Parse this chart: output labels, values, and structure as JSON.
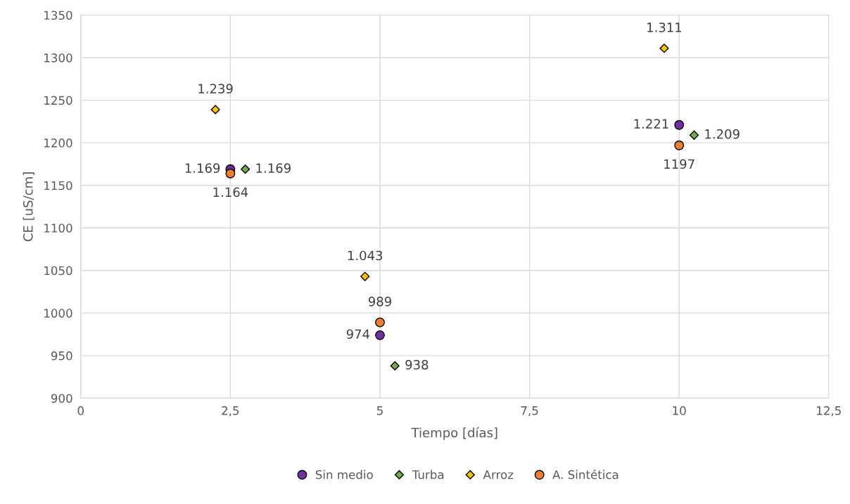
{
  "chart_data": {
    "type": "scatter",
    "xlabel": "Tiempo [días]",
    "ylabel": "CE [uS/cm]",
    "xlim": [
      0,
      12.5
    ],
    "xticks": [
      0,
      {
        "value": 2.5,
        "label": "2,5"
      },
      5,
      {
        "value": 7.5,
        "label": "7,5"
      },
      10,
      {
        "value": 12.5,
        "label": "12,5"
      }
    ],
    "ylim": [
      900,
      1350
    ],
    "yticks": [
      900,
      950,
      1000,
      1050,
      1100,
      1150,
      1200,
      1250,
      1300,
      1350
    ],
    "grid": true,
    "legend": "bottom",
    "series": [
      {
        "name": "Sin medio",
        "color": "#7030a0",
        "marker": "circle",
        "x": [
          2.5,
          5,
          10
        ],
        "values": [
          1169,
          974,
          1221
        ],
        "value_labels": [
          "1.169",
          "974",
          "1.221"
        ]
      },
      {
        "name": "Turba",
        "color": "#70ad47",
        "marker": "diamond",
        "x": [
          2.75,
          5.25,
          10.25
        ],
        "values": [
          1169,
          938,
          1209
        ],
        "value_labels": [
          "1.169",
          "938",
          "1.209"
        ]
      },
      {
        "name": "Arroz",
        "color": "#ffc000",
        "marker": "diamond",
        "x": [
          2.25,
          4.75,
          9.75
        ],
        "values": [
          1239,
          1043,
          1311
        ],
        "value_labels": [
          "1.239",
          "1.043",
          "1.311"
        ]
      },
      {
        "name": "A. Sintética",
        "color": "#ed7d31",
        "marker": "circle",
        "x": [
          2.5,
          5,
          10
        ],
        "values": [
          1164,
          989,
          1197
        ],
        "value_labels": [
          "1.164",
          "989",
          "1197"
        ]
      }
    ]
  }
}
